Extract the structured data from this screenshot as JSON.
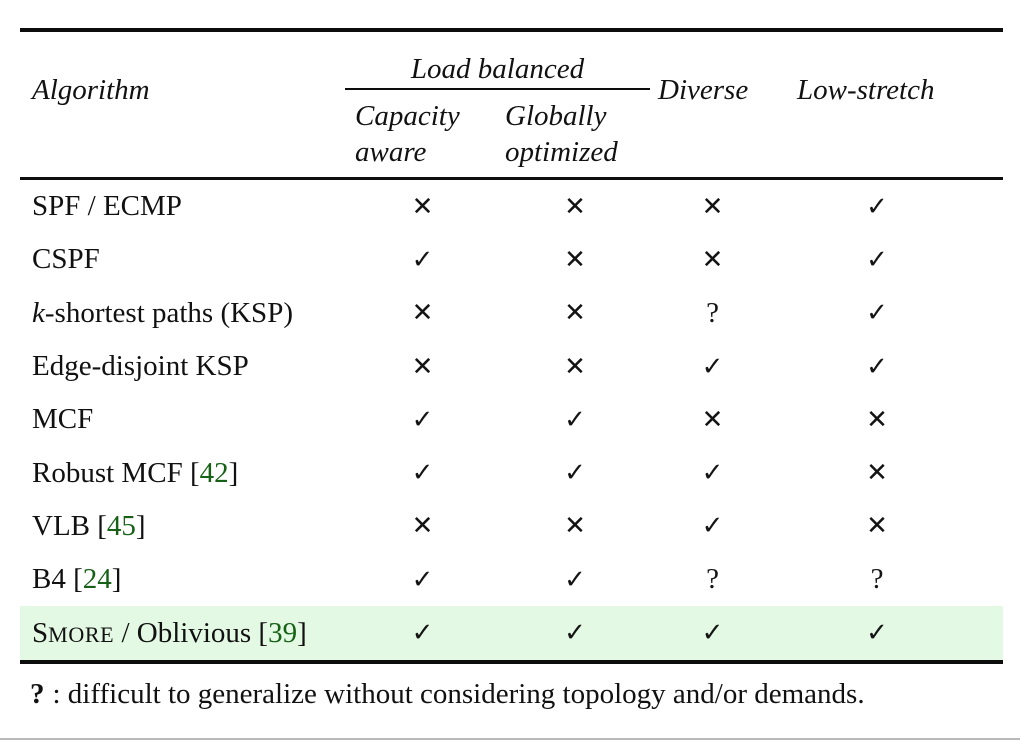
{
  "colors": {
    "citation_green": "#176117",
    "highlight_green": "#e4f9e4",
    "rule_black": "#0d0d0d"
  },
  "table": {
    "header": {
      "algorithm": "Algorithm",
      "load_balanced_group": "Load balanced",
      "capacity_aware": "Capacity aware",
      "globally_optimized": "Globally optimized",
      "diverse": "Diverse",
      "low_stretch": "Low-stretch"
    },
    "symbols": {
      "check": "✓",
      "cross": "✕",
      "question": "?"
    },
    "rows": [
      {
        "label": [
          {
            "t": "SPF / ECMP"
          }
        ],
        "values": [
          "cross",
          "cross",
          "cross",
          "check"
        ],
        "highlight": false
      },
      {
        "label": [
          {
            "t": "CSPF"
          }
        ],
        "values": [
          "check",
          "cross",
          "cross",
          "check"
        ],
        "highlight": false
      },
      {
        "label": [
          {
            "t": "k",
            "s": "italic"
          },
          {
            "t": "-shortest paths (KSP)"
          }
        ],
        "values": [
          "cross",
          "cross",
          "question",
          "check"
        ],
        "highlight": false
      },
      {
        "label": [
          {
            "t": "Edge-disjoint KSP"
          }
        ],
        "values": [
          "cross",
          "cross",
          "check",
          "check"
        ],
        "highlight": false
      },
      {
        "label": [
          {
            "t": "MCF"
          }
        ],
        "values": [
          "check",
          "check",
          "cross",
          "cross"
        ],
        "highlight": false
      },
      {
        "label": [
          {
            "t": "Robust MCF ["
          },
          {
            "t": "42",
            "s": "cite"
          },
          {
            "t": "]"
          }
        ],
        "values": [
          "check",
          "check",
          "check",
          "cross"
        ],
        "highlight": false
      },
      {
        "label": [
          {
            "t": "VLB ["
          },
          {
            "t": "45",
            "s": "cite"
          },
          {
            "t": "]"
          }
        ],
        "values": [
          "cross",
          "cross",
          "check",
          "cross"
        ],
        "highlight": false
      },
      {
        "label": [
          {
            "t": "B4 ["
          },
          {
            "t": "24",
            "s": "cite"
          },
          {
            "t": "]"
          }
        ],
        "values": [
          "check",
          "check",
          "question",
          "question"
        ],
        "highlight": false
      },
      {
        "label": [
          {
            "t": "S"
          },
          {
            "t": "MORE",
            "s": "smallcaps"
          },
          {
            "t": " / Oblivious ["
          },
          {
            "t": "39",
            "s": "cite"
          },
          {
            "t": "]"
          }
        ],
        "values": [
          "check",
          "check",
          "check",
          "check"
        ],
        "highlight": true
      }
    ]
  },
  "footnote": {
    "marker": "?",
    "text": ": difficult to generalize without considering topology and/or demands."
  }
}
